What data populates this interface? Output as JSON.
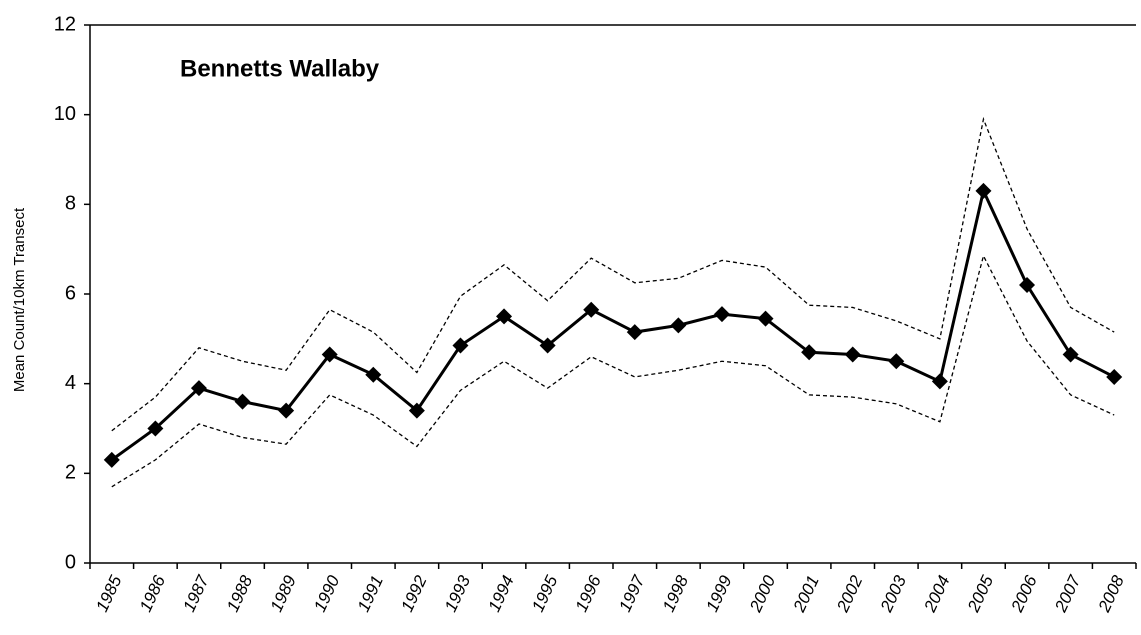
{
  "chart_data": {
    "type": "line",
    "title": "Bennetts Wallaby",
    "y_label": "Mean Count/10km Transect",
    "categories": [
      "1985",
      "1986",
      "1987",
      "1988",
      "1989",
      "1990",
      "1991",
      "1992",
      "1993",
      "1994",
      "1995",
      "1996",
      "1997",
      "1998",
      "1999",
      "2000",
      "2001",
      "2002",
      "2003",
      "2004",
      "2005",
      "2006",
      "2007",
      "2008"
    ],
    "series": [
      {
        "color": "#000000",
        "style": "solid",
        "marker": "diamond",
        "values": [
          2.3,
          3.0,
          3.9,
          3.6,
          3.4,
          4.65,
          4.2,
          3.4,
          4.85,
          5.5,
          4.85,
          5.65,
          5.15,
          5.3,
          5.55,
          5.45,
          4.7,
          4.65,
          4.5,
          4.05,
          8.3,
          6.2,
          4.65,
          4.15
        ]
      },
      {
        "color": "#000000",
        "style": "dashed",
        "marker": "none",
        "values": [
          2.95,
          3.7,
          4.8,
          4.5,
          4.3,
          5.65,
          5.15,
          4.25,
          5.95,
          6.65,
          5.85,
          6.8,
          6.25,
          6.35,
          6.75,
          6.6,
          5.75,
          5.7,
          5.4,
          5.0,
          9.9,
          7.45,
          5.7,
          5.15
        ]
      },
      {
        "color": "#000000",
        "style": "dashed",
        "marker": "none",
        "values": [
          1.7,
          2.3,
          3.1,
          2.8,
          2.65,
          3.75,
          3.3,
          2.6,
          3.85,
          4.5,
          3.9,
          4.6,
          4.15,
          4.3,
          4.5,
          4.4,
          3.75,
          3.7,
          3.55,
          3.15,
          6.85,
          4.95,
          3.75,
          3.3
        ]
      }
    ],
    "ylim": [
      0,
      12
    ],
    "yticks": [
      0,
      2,
      4,
      6,
      8,
      10,
      12
    ],
    "grid": false
  }
}
